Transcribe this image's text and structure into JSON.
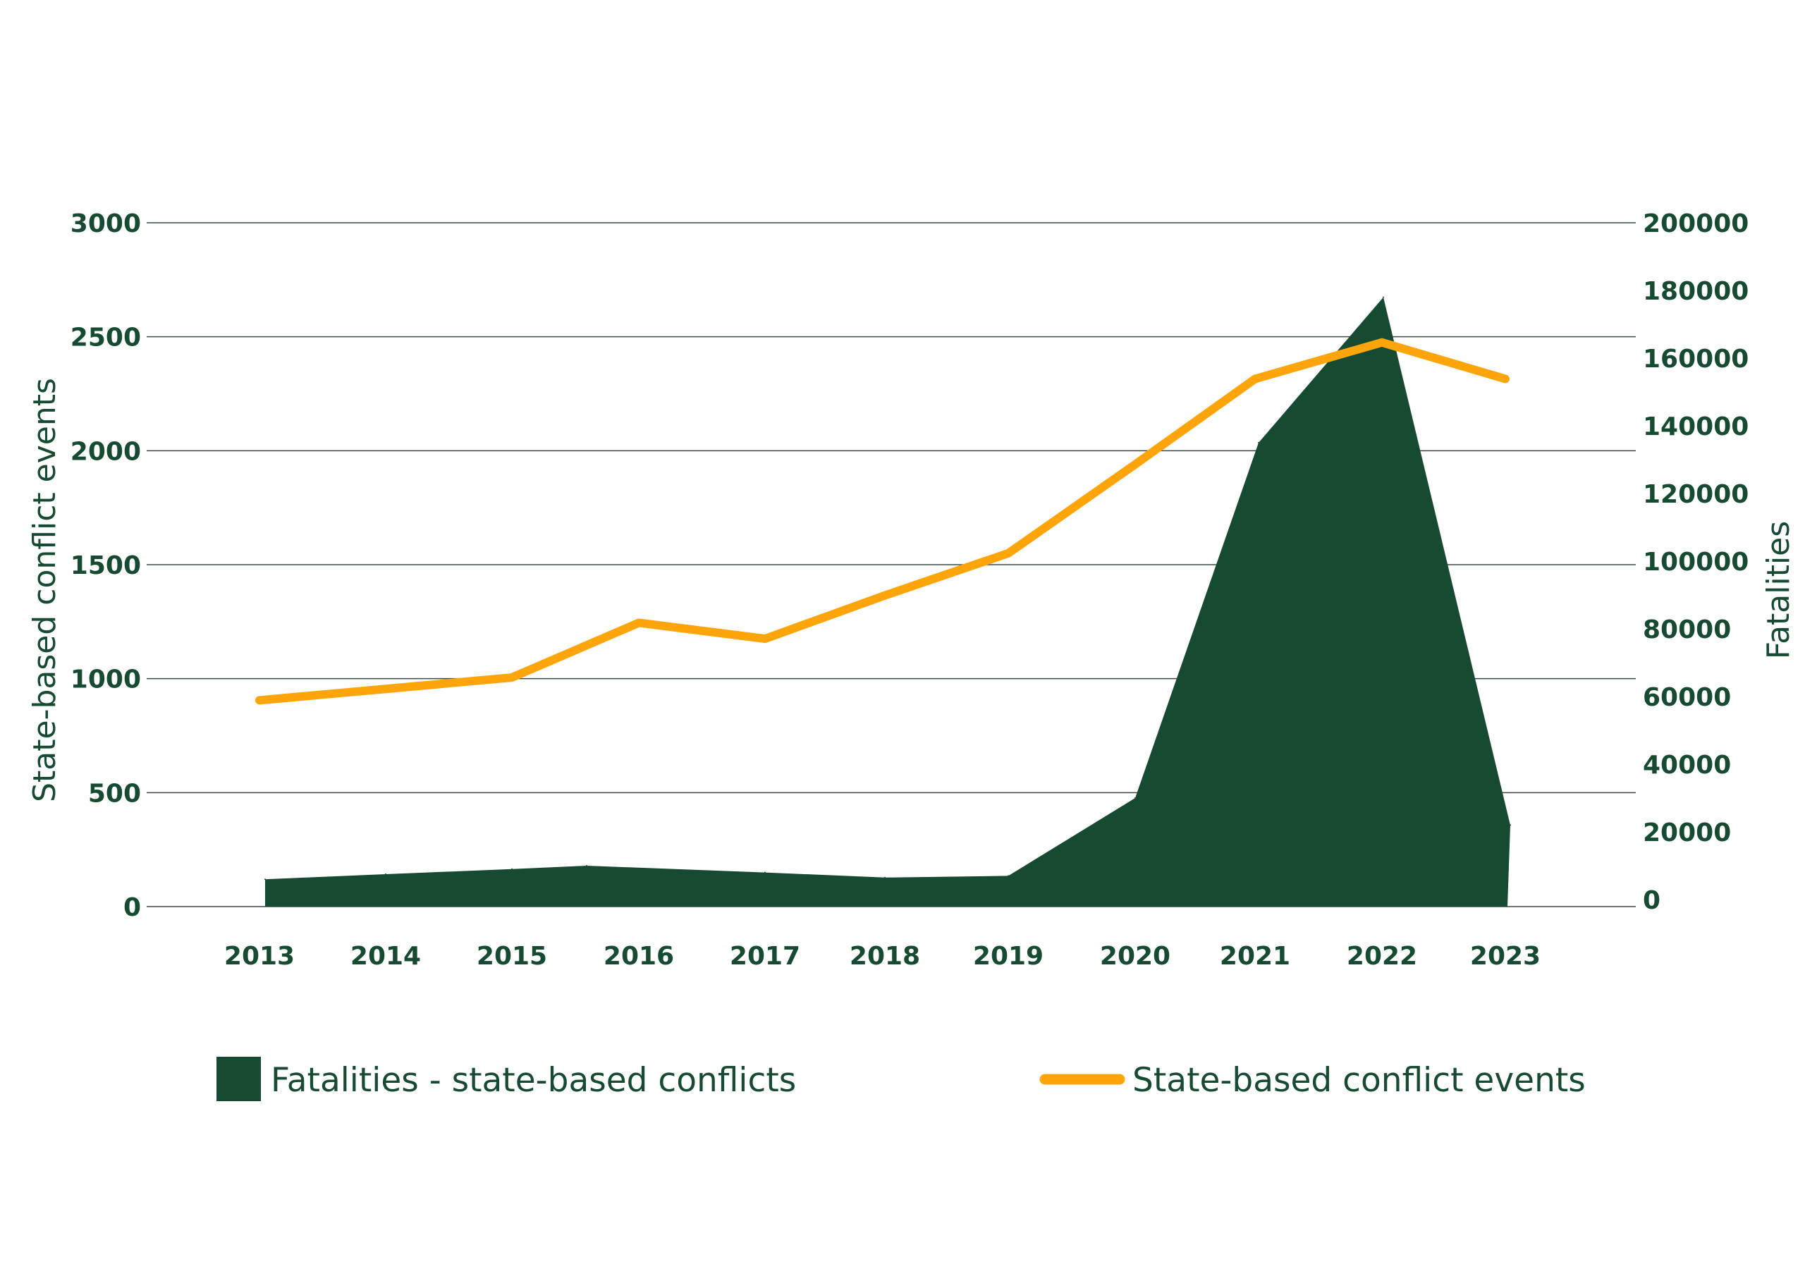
{
  "colors": {
    "text": "#164A31",
    "area": "#164A31",
    "line": "#FFA50A",
    "grid": "#3b4a42"
  },
  "chart_data": {
    "type": "area",
    "x": [
      "2013",
      "2014",
      "2015",
      "2016",
      "2017",
      "2018",
      "2019",
      "2020",
      "2021",
      "2022",
      "2023"
    ],
    "series": [
      {
        "name": "Fatalities - state-based conflicts",
        "type": "area",
        "axis": "right",
        "values": [
          6000,
          7500,
          9000,
          10000,
          8000,
          6500,
          7000,
          30000,
          135000,
          178000,
          22000
        ]
      },
      {
        "name": "State-based conflict events",
        "type": "line",
        "axis": "left",
        "values": [
          905,
          955,
          1005,
          1245,
          1175,
          1365,
          1550,
          1940,
          2315,
          2475,
          2315
        ]
      }
    ],
    "ylabel": "State-based conflict events",
    "ylim": [
      0,
      3000
    ],
    "yticks": [
      "0",
      "500",
      "1000",
      "1500",
      "2000",
      "2500",
      "3000"
    ],
    "y2label": "Fatalities",
    "y2lim": [
      0,
      200000
    ],
    "y2ticks": [
      "0",
      "20000",
      "40000",
      "60000",
      "80000",
      "100000",
      "120000",
      "140000",
      "160000",
      "180000",
      "200000"
    ],
    "grid": true,
    "legend": "bottom"
  }
}
